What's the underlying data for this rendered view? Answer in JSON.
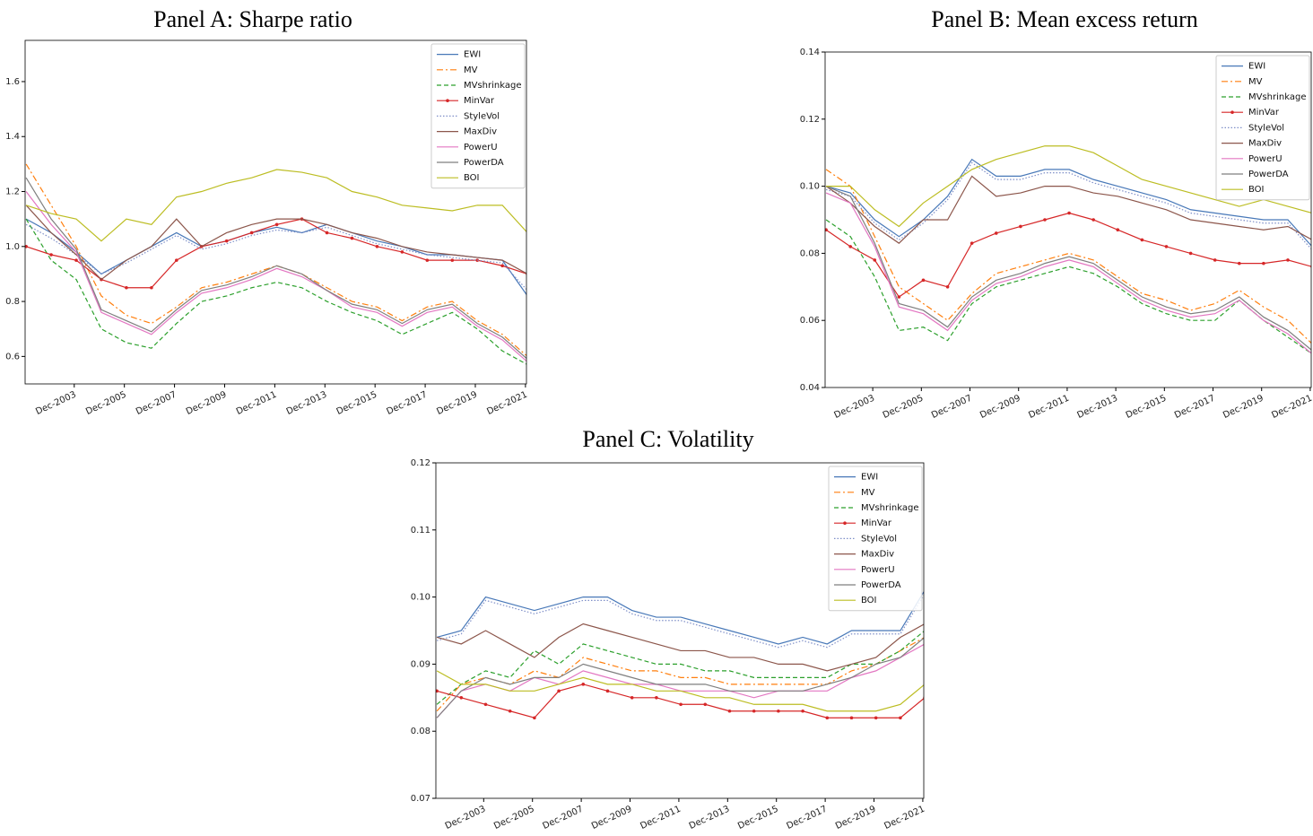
{
  "chart_data": [
    {
      "type": "line",
      "title": "Panel  A: Sharpe ratio",
      "x": [
        2002,
        2003,
        2004,
        2005,
        2006,
        2007,
        2008,
        2009,
        2010,
        2011,
        2012,
        2013,
        2014,
        2015,
        2016,
        2017,
        2018,
        2019,
        2020,
        2021,
        2022
      ],
      "xlim": [
        2001.96,
        2021.96
      ],
      "xticks": [
        {
          "value": 2003.92,
          "label": "Dec-2003"
        },
        {
          "value": 2005.92,
          "label": "Dec-2005"
        },
        {
          "value": 2007.92,
          "label": "Dec-2007"
        },
        {
          "value": 2009.92,
          "label": "Dec-2009"
        },
        {
          "value": 2011.92,
          "label": "Dec-2011"
        },
        {
          "value": 2013.92,
          "label": "Dec-2013"
        },
        {
          "value": 2015.92,
          "label": "Dec-2015"
        },
        {
          "value": 2017.92,
          "label": "Dec-2017"
        },
        {
          "value": 2019.92,
          "label": "Dec-2019"
        },
        {
          "value": 2021.92,
          "label": "Dec-2021"
        }
      ],
      "ylim": [
        0.5,
        1.75
      ],
      "yticks": [
        0.6,
        0.8,
        {
          "value": 1,
          "label": "1.0"
        },
        1.2,
        1.4,
        1.6
      ],
      "legend": "upper right",
      "series": [
        {
          "name": "EWI",
          "color": "#4878b8",
          "linestyle": "-",
          "values": [
            1.1,
            1.05,
            0.98,
            0.9,
            0.95,
            1.0,
            1.05,
            1.0,
            1.02,
            1.05,
            1.07,
            1.05,
            1.08,
            1.05,
            1.02,
            1.0,
            0.97,
            0.97,
            0.96,
            0.95,
            0.82
          ]
        },
        {
          "name": "MV",
          "color": "#ff7f0e",
          "linestyle": "-.",
          "values": [
            1.3,
            1.15,
            1.0,
            0.82,
            0.75,
            0.72,
            0.78,
            0.85,
            0.87,
            0.9,
            0.93,
            0.9,
            0.85,
            0.8,
            0.78,
            0.73,
            0.78,
            0.8,
            0.73,
            0.68,
            0.6
          ]
        },
        {
          "name": "MVshrinkage",
          "color": "#2ca02c",
          "linestyle": "--",
          "values": [
            1.1,
            0.95,
            0.88,
            0.7,
            0.65,
            0.63,
            0.72,
            0.8,
            0.82,
            0.85,
            0.87,
            0.85,
            0.8,
            0.76,
            0.73,
            0.68,
            0.72,
            0.76,
            0.7,
            0.62,
            0.57
          ]
        },
        {
          "name": "MinVar",
          "color": "#d62728",
          "linestyle": "-",
          "marker": ".",
          "values": [
            1.0,
            0.97,
            0.95,
            0.88,
            0.85,
            0.85,
            0.95,
            1.0,
            1.02,
            1.05,
            1.08,
            1.1,
            1.05,
            1.03,
            1.0,
            0.98,
            0.95,
            0.95,
            0.95,
            0.93,
            0.9
          ]
        },
        {
          "name": "StyleVol",
          "color": "#7f8fc8",
          "linestyle": ":",
          "values": [
            1.08,
            1.03,
            0.97,
            0.9,
            0.94,
            0.99,
            1.04,
            0.99,
            1.01,
            1.04,
            1.06,
            1.05,
            1.07,
            1.04,
            1.01,
            0.99,
            0.97,
            0.96,
            0.95,
            0.94,
            0.84
          ]
        },
        {
          "name": "MaxDiv",
          "color": "#8c564b",
          "linestyle": "-",
          "values": [
            1.15,
            1.05,
            0.97,
            0.88,
            0.95,
            1.0,
            1.1,
            1.0,
            1.05,
            1.08,
            1.1,
            1.1,
            1.08,
            1.05,
            1.03,
            1.0,
            0.98,
            0.97,
            0.96,
            0.95,
            0.9
          ]
        },
        {
          "name": "PowerU",
          "color": "#e377c2",
          "linestyle": "-",
          "values": [
            1.2,
            1.08,
            0.98,
            0.76,
            0.72,
            0.68,
            0.76,
            0.83,
            0.85,
            0.88,
            0.92,
            0.89,
            0.84,
            0.78,
            0.76,
            0.71,
            0.76,
            0.78,
            0.71,
            0.66,
            0.58
          ]
        },
        {
          "name": "PowerDA",
          "color": "#7f7f7f",
          "linestyle": "-",
          "values": [
            1.25,
            1.1,
            0.99,
            0.77,
            0.73,
            0.69,
            0.77,
            0.84,
            0.86,
            0.89,
            0.93,
            0.9,
            0.84,
            0.79,
            0.77,
            0.72,
            0.77,
            0.79,
            0.72,
            0.67,
            0.59
          ]
        },
        {
          "name": "BOI",
          "color": "#bcbd22",
          "linestyle": "-",
          "values": [
            1.15,
            1.12,
            1.1,
            1.02,
            1.1,
            1.08,
            1.18,
            1.2,
            1.23,
            1.25,
            1.28,
            1.27,
            1.25,
            1.2,
            1.18,
            1.15,
            1.14,
            1.13,
            1.15,
            1.15,
            1.05
          ]
        }
      ]
    },
    {
      "type": "line",
      "title": "Panel B: Mean excess return",
      "x": [
        2002,
        2003,
        2004,
        2005,
        2006,
        2007,
        2008,
        2009,
        2010,
        2011,
        2012,
        2013,
        2014,
        2015,
        2016,
        2017,
        2018,
        2019,
        2020,
        2021,
        2022
      ],
      "xlim": [
        2001.96,
        2021.96
      ],
      "xticks": [
        {
          "value": 2003.92,
          "label": "Dec-2003"
        },
        {
          "value": 2005.92,
          "label": "Dec-2005"
        },
        {
          "value": 2007.92,
          "label": "Dec-2007"
        },
        {
          "value": 2009.92,
          "label": "Dec-2009"
        },
        {
          "value": 2011.92,
          "label": "Dec-2011"
        },
        {
          "value": 2013.92,
          "label": "Dec-2013"
        },
        {
          "value": 2015.92,
          "label": "Dec-2015"
        },
        {
          "value": 2017.92,
          "label": "Dec-2017"
        },
        {
          "value": 2019.92,
          "label": "Dec-2019"
        },
        {
          "value": 2021.92,
          "label": "Dec-2021"
        }
      ],
      "ylim": [
        0.04,
        0.14
      ],
      "yticks": [
        0.04,
        0.06,
        0.08,
        {
          "value": 0.1,
          "label": "0.10"
        },
        0.12,
        0.14
      ],
      "legend": "upper right",
      "series": [
        {
          "name": "EWI",
          "color": "#4878b8",
          "linestyle": "-",
          "values": [
            0.1,
            0.098,
            0.09,
            0.085,
            0.09,
            0.097,
            0.108,
            0.103,
            0.103,
            0.105,
            0.105,
            0.102,
            0.1,
            0.098,
            0.096,
            0.093,
            0.092,
            0.091,
            0.09,
            0.09,
            0.082
          ]
        },
        {
          "name": "MV",
          "color": "#ff7f0e",
          "linestyle": "-.",
          "values": [
            0.105,
            0.1,
            0.085,
            0.07,
            0.065,
            0.06,
            0.068,
            0.074,
            0.076,
            0.078,
            0.08,
            0.078,
            0.073,
            0.068,
            0.066,
            0.063,
            0.065,
            0.069,
            0.064,
            0.06,
            0.053
          ]
        },
        {
          "name": "MVshrinkage",
          "color": "#2ca02c",
          "linestyle": "--",
          "values": [
            0.09,
            0.085,
            0.073,
            0.057,
            0.058,
            0.054,
            0.065,
            0.07,
            0.072,
            0.074,
            0.076,
            0.074,
            0.07,
            0.065,
            0.062,
            0.06,
            0.06,
            0.066,
            0.06,
            0.055,
            0.05
          ]
        },
        {
          "name": "MinVar",
          "color": "#d62728",
          "linestyle": "-",
          "marker": ".",
          "values": [
            0.087,
            0.082,
            0.078,
            0.067,
            0.072,
            0.07,
            0.083,
            0.086,
            0.088,
            0.09,
            0.092,
            0.09,
            0.087,
            0.084,
            0.082,
            0.08,
            0.078,
            0.077,
            0.077,
            0.078,
            0.076
          ]
        },
        {
          "name": "StyleVol",
          "color": "#7f8fc8",
          "linestyle": ":",
          "values": [
            0.099,
            0.097,
            0.089,
            0.084,
            0.089,
            0.096,
            0.107,
            0.102,
            0.102,
            0.104,
            0.104,
            0.101,
            0.099,
            0.097,
            0.095,
            0.092,
            0.091,
            0.09,
            0.089,
            0.089,
            0.081
          ]
        },
        {
          "name": "MaxDiv",
          "color": "#8c564b",
          "linestyle": "-",
          "values": [
            0.1,
            0.095,
            0.088,
            0.083,
            0.09,
            0.09,
            0.103,
            0.097,
            0.098,
            0.1,
            0.1,
            0.098,
            0.097,
            0.095,
            0.093,
            0.09,
            0.089,
            0.088,
            0.087,
            0.088,
            0.084
          ]
        },
        {
          "name": "PowerU",
          "color": "#e377c2",
          "linestyle": "-",
          "values": [
            0.098,
            0.095,
            0.082,
            0.064,
            0.062,
            0.057,
            0.066,
            0.071,
            0.073,
            0.076,
            0.078,
            0.076,
            0.071,
            0.066,
            0.063,
            0.061,
            0.062,
            0.066,
            0.06,
            0.056,
            0.05
          ]
        },
        {
          "name": "PowerDA",
          "color": "#7f7f7f",
          "linestyle": "-",
          "values": [
            0.1,
            0.097,
            0.083,
            0.065,
            0.063,
            0.058,
            0.067,
            0.072,
            0.074,
            0.077,
            0.079,
            0.077,
            0.072,
            0.067,
            0.064,
            0.062,
            0.063,
            0.067,
            0.061,
            0.057,
            0.051
          ]
        },
        {
          "name": "BOI",
          "color": "#bcbd22",
          "linestyle": "-",
          "values": [
            0.1,
            0.1,
            0.093,
            0.088,
            0.095,
            0.1,
            0.105,
            0.108,
            0.11,
            0.112,
            0.112,
            0.11,
            0.106,
            0.102,
            0.1,
            0.098,
            0.096,
            0.094,
            0.096,
            0.094,
            0.092
          ]
        }
      ]
    },
    {
      "type": "line",
      "title": "Panel C: Volatility",
      "x": [
        2002,
        2003,
        2004,
        2005,
        2006,
        2007,
        2008,
        2009,
        2010,
        2011,
        2012,
        2013,
        2014,
        2015,
        2016,
        2017,
        2018,
        2019,
        2020,
        2021,
        2022
      ],
      "xlim": [
        2001.96,
        2021.96
      ],
      "xticks": [
        {
          "value": 2003.92,
          "label": "Dec-2003"
        },
        {
          "value": 2005.92,
          "label": "Dec-2005"
        },
        {
          "value": 2007.92,
          "label": "Dec-2007"
        },
        {
          "value": 2009.92,
          "label": "Dec-2009"
        },
        {
          "value": 2011.92,
          "label": "Dec-2011"
        },
        {
          "value": 2013.92,
          "label": "Dec-2013"
        },
        {
          "value": 2015.92,
          "label": "Dec-2015"
        },
        {
          "value": 2017.92,
          "label": "Dec-2017"
        },
        {
          "value": 2019.92,
          "label": "Dec-2019"
        },
        {
          "value": 2021.92,
          "label": "Dec-2021"
        }
      ],
      "ylim": [
        0.07,
        0.12
      ],
      "yticks": [
        0.07,
        0.08,
        0.09,
        {
          "value": 0.1,
          "label": "0.10"
        },
        0.11,
        0.12
      ],
      "legend": "upper right",
      "series": [
        {
          "name": "EWI",
          "color": "#4878b8",
          "linestyle": "-",
          "values": [
            0.094,
            0.095,
            0.1,
            0.099,
            0.098,
            0.099,
            0.1,
            0.1,
            0.098,
            0.097,
            0.097,
            0.096,
            0.095,
            0.094,
            0.093,
            0.094,
            0.093,
            0.095,
            0.095,
            0.095,
            0.101
          ]
        },
        {
          "name": "MV",
          "color": "#ff7f0e",
          "linestyle": "-.",
          "values": [
            0.083,
            0.087,
            0.088,
            0.087,
            0.089,
            0.088,
            0.091,
            0.09,
            0.089,
            0.089,
            0.088,
            0.088,
            0.087,
            0.087,
            0.087,
            0.087,
            0.087,
            0.089,
            0.09,
            0.092,
            0.094
          ]
        },
        {
          "name": "MVshrinkage",
          "color": "#2ca02c",
          "linestyle": "--",
          "values": [
            0.084,
            0.087,
            0.089,
            0.088,
            0.092,
            0.09,
            0.093,
            0.092,
            0.091,
            0.09,
            0.09,
            0.089,
            0.089,
            0.088,
            0.088,
            0.088,
            0.088,
            0.09,
            0.09,
            0.092,
            0.095
          ]
        },
        {
          "name": "MinVar",
          "color": "#d62728",
          "linestyle": "-",
          "marker": ".",
          "values": [
            0.086,
            0.085,
            0.084,
            0.083,
            0.082,
            0.086,
            0.087,
            0.086,
            0.085,
            0.085,
            0.084,
            0.084,
            0.083,
            0.083,
            0.083,
            0.083,
            0.082,
            0.082,
            0.082,
            0.082,
            0.085
          ]
        },
        {
          "name": "StyleVol",
          "color": "#7f8fc8",
          "linestyle": ":",
          "values": [
            0.0935,
            0.0945,
            0.0995,
            0.0985,
            0.0975,
            0.0985,
            0.0995,
            0.0995,
            0.0975,
            0.0965,
            0.0965,
            0.0955,
            0.0945,
            0.0935,
            0.0925,
            0.0935,
            0.0925,
            0.0945,
            0.0945,
            0.0945,
            0.1005
          ]
        },
        {
          "name": "MaxDiv",
          "color": "#8c564b",
          "linestyle": "-",
          "values": [
            0.094,
            0.093,
            0.095,
            0.093,
            0.091,
            0.094,
            0.096,
            0.095,
            0.094,
            0.093,
            0.092,
            0.092,
            0.091,
            0.091,
            0.09,
            0.09,
            0.089,
            0.09,
            0.091,
            0.094,
            0.096
          ]
        },
        {
          "name": "PowerU",
          "color": "#e377c2",
          "linestyle": "-",
          "values": [
            0.082,
            0.086,
            0.087,
            0.086,
            0.088,
            0.087,
            0.089,
            0.088,
            0.087,
            0.087,
            0.086,
            0.086,
            0.086,
            0.085,
            0.086,
            0.086,
            0.086,
            0.088,
            0.089,
            0.091,
            0.093
          ]
        },
        {
          "name": "PowerDA",
          "color": "#7f7f7f",
          "linestyle": "-",
          "values": [
            0.082,
            0.086,
            0.088,
            0.087,
            0.088,
            0.088,
            0.09,
            0.089,
            0.088,
            0.087,
            0.087,
            0.087,
            0.086,
            0.086,
            0.086,
            0.086,
            0.087,
            0.088,
            0.09,
            0.091,
            0.094
          ]
        },
        {
          "name": "BOI",
          "color": "#bcbd22",
          "linestyle": "-",
          "values": [
            0.089,
            0.087,
            0.087,
            0.086,
            0.086,
            0.087,
            0.088,
            0.087,
            0.087,
            0.086,
            0.086,
            0.085,
            0.085,
            0.084,
            0.084,
            0.084,
            0.083,
            0.083,
            0.083,
            0.084,
            0.087
          ]
        }
      ]
    }
  ]
}
